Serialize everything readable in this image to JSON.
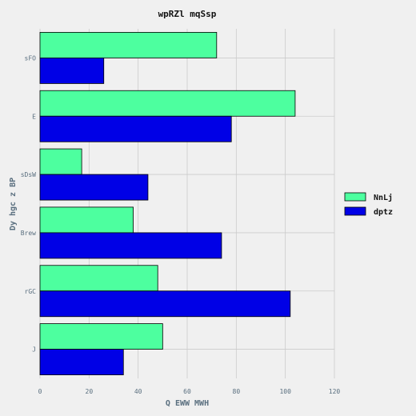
{
  "chart_data": {
    "type": "bar",
    "orientation": "horizontal",
    "title": "wpRZl mqSsp",
    "xlabel": "Q EWW MWH",
    "ylabel": "Dy hgc z BP",
    "categories": [
      "sFO",
      "E",
      "sDsW",
      "Brew",
      "rGC",
      "J"
    ],
    "series": [
      {
        "name": "NnLj",
        "values": [
          72,
          104,
          17,
          38,
          48,
          50
        ],
        "color": "#4dff9f"
      },
      {
        "name": "dptz",
        "values": [
          26,
          78,
          44,
          74,
          102,
          34
        ],
        "color": "#0000e6"
      }
    ],
    "xlim": [
      0,
      120
    ],
    "xticks": [
      "0",
      "20",
      "40",
      "60",
      "80",
      "100",
      "120"
    ],
    "grid": true,
    "legend_position": "right"
  }
}
